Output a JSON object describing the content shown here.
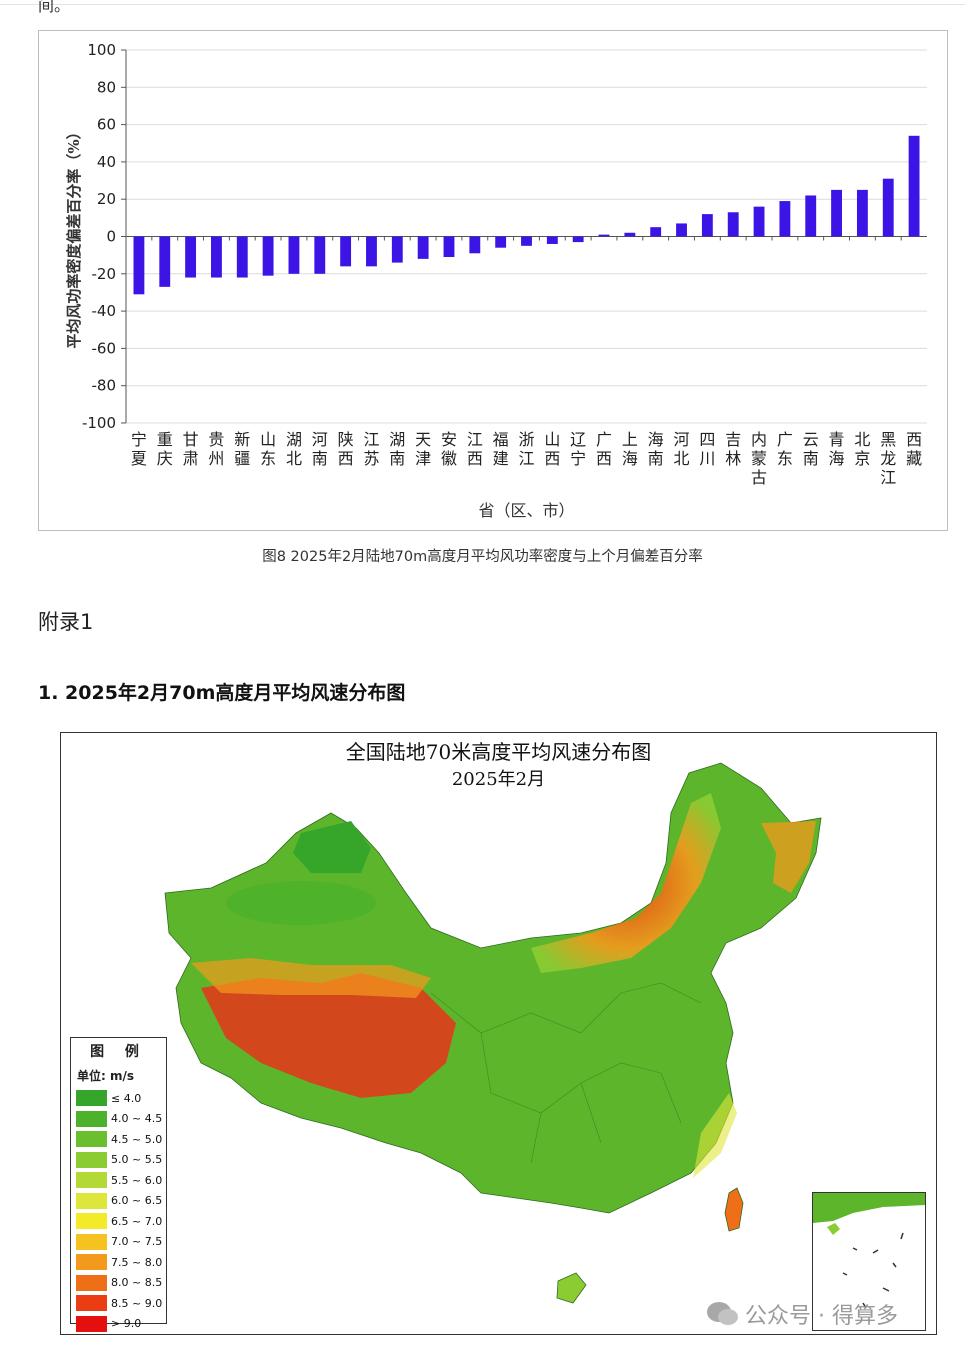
{
  "page": {
    "top_fragment": "间。",
    "caption": "图8 2025年2月陆地70m高度月平均风功率密度与上个月偏差百分率",
    "appendix_title": "附录1",
    "section_heading": "1. 2025年2月70m高度月平均风速分布图",
    "watermark": "公众号 · 得算多"
  },
  "chart_data": {
    "type": "bar",
    "title": "",
    "xlabel": "省（区、市）",
    "ylabel": "平均风功率密度偏差百分率（%）",
    "ylim": [
      -100,
      100
    ],
    "yticks": [
      100,
      80,
      60,
      40,
      20,
      0,
      -20,
      -40,
      -60,
      -80,
      -100
    ],
    "grid": true,
    "bar_color": "#3c14e6",
    "categories": [
      "宁夏",
      "重庆",
      "甘肃",
      "贵州",
      "新疆",
      "山东",
      "湖北",
      "河南",
      "陕西",
      "江苏",
      "湖南",
      "天津",
      "安徽",
      "江西",
      "福建",
      "浙江",
      "山西",
      "辽宁",
      "广西",
      "上海",
      "海南",
      "河北",
      "四川",
      "吉林",
      "内蒙古",
      "广东",
      "云南",
      "青海",
      "北京",
      "黑龙江",
      "西藏"
    ],
    "values": [
      -31,
      -27,
      -22,
      -22,
      -22,
      -21,
      -20,
      -20,
      -16,
      -16,
      -14,
      -12,
      -11,
      -9,
      -6,
      -5,
      -4,
      -3,
      1,
      2,
      5,
      7,
      12,
      13,
      16,
      19,
      22,
      25,
      25,
      31,
      54
    ]
  },
  "map": {
    "title": "全国陆地70米高度平均风速分布图",
    "subtitle": "2025年2月",
    "legend_title": "图 例",
    "legend_unit": "单位: m/s",
    "legend_items": [
      {
        "label": "≤ 4.0",
        "color": "#36a62a"
      },
      {
        "label": "4.0 ~ 4.5",
        "color": "#4cb22b"
      },
      {
        "label": "4.5 ~ 5.0",
        "color": "#6abf2e"
      },
      {
        "label": "5.0 ~ 5.5",
        "color": "#8ccc33"
      },
      {
        "label": "5.5 ~ 6.0",
        "color": "#b2d936"
      },
      {
        "label": "6.0 ~ 6.5",
        "color": "#dde63a"
      },
      {
        "label": "6.5 ~ 7.0",
        "color": "#f3ea2a"
      },
      {
        "label": "7.0 ~ 7.5",
        "color": "#f5c21f"
      },
      {
        "label": "7.5 ~ 8.0",
        "color": "#f39a1c"
      },
      {
        "label": "8.0 ~ 8.5",
        "color": "#ef6f18"
      },
      {
        "label": "8.5 ~ 9.0",
        "color": "#ea3d14"
      },
      {
        "label": "> 9.0",
        "color": "#e41010"
      }
    ]
  }
}
